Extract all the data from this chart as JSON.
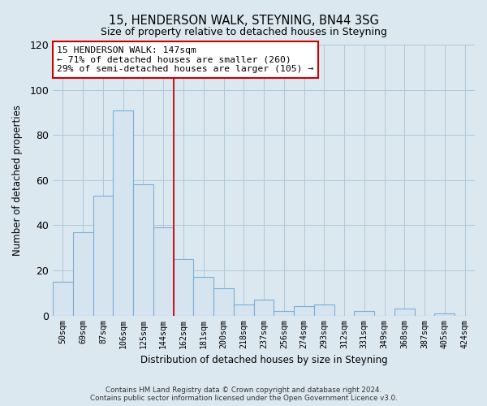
{
  "title": "15, HENDERSON WALK, STEYNING, BN44 3SG",
  "subtitle": "Size of property relative to detached houses in Steyning",
  "xlabel": "Distribution of detached houses by size in Steyning",
  "ylabel": "Number of detached properties",
  "bin_labels": [
    "50sqm",
    "69sqm",
    "87sqm",
    "106sqm",
    "125sqm",
    "144sqm",
    "162sqm",
    "181sqm",
    "200sqm",
    "218sqm",
    "237sqm",
    "256sqm",
    "274sqm",
    "293sqm",
    "312sqm",
    "331sqm",
    "349sqm",
    "368sqm",
    "387sqm",
    "405sqm",
    "424sqm"
  ],
  "bar_heights": [
    15,
    37,
    53,
    91,
    58,
    39,
    25,
    17,
    12,
    5,
    7,
    2,
    4,
    5,
    0,
    2,
    0,
    3,
    0,
    1,
    0
  ],
  "bar_color": "#d6e4f0",
  "bar_edge_color": "#7aaed6",
  "vline_x": 5.5,
  "vline_color": "#cc0000",
  "annotation_line1": "15 HENDERSON WALK: 147sqm",
  "annotation_line2": "← 71% of detached houses are smaller (260)",
  "annotation_line3": "29% of semi-detached houses are larger (105) →",
  "annotation_box_color": "#ffffff",
  "annotation_box_edge": "#cc0000",
  "ylim": [
    0,
    120
  ],
  "yticks": [
    0,
    20,
    40,
    60,
    80,
    100,
    120
  ],
  "bg_color": "#dce8f0",
  "footer": "Contains HM Land Registry data © Crown copyright and database right 2024.\nContains public sector information licensed under the Open Government Licence v3.0."
}
